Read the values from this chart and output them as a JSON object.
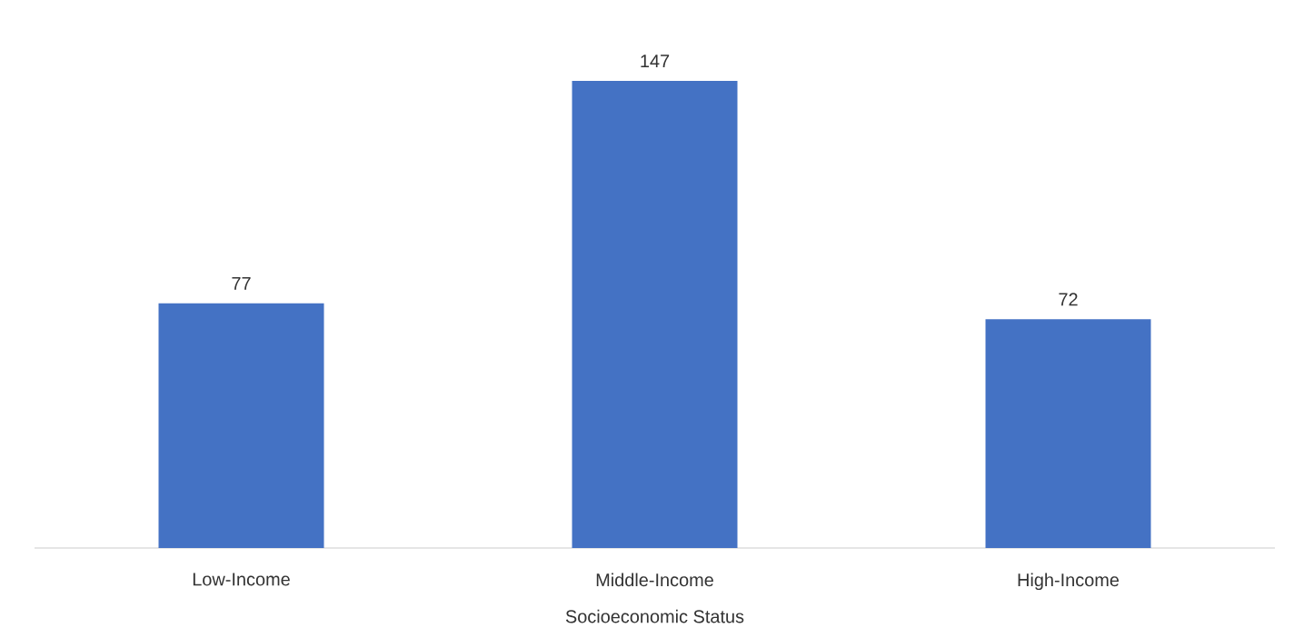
{
  "chart_data": {
    "type": "bar",
    "xlabel": "Socioeconomic Status",
    "categories": [
      "Low-Income",
      "Middle-Income",
      "High-Income"
    ],
    "values": [
      77,
      147,
      72
    ],
    "color": "#4472c4",
    "data_labels": true
  }
}
